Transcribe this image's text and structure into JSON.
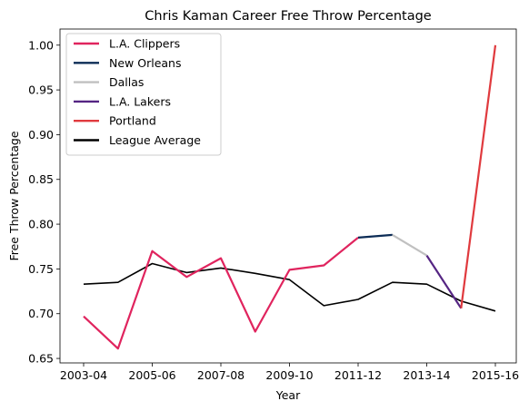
{
  "chart_data": {
    "type": "line",
    "title": "Chris Kaman Career Free Throw Percentage",
    "xlabel": "Year",
    "ylabel": "Free Throw Percentage",
    "seasons": [
      "2003-04",
      "2004-05",
      "2005-06",
      "2006-07",
      "2007-08",
      "2008-09",
      "2009-10",
      "2010-11",
      "2011-12",
      "2012-13",
      "2013-14",
      "2014-15",
      "2015-16"
    ],
    "x_tick_labels": [
      "2003-04",
      "2005-06",
      "2007-08",
      "2009-10",
      "2011-12",
      "2013-14",
      "2015-16"
    ],
    "ylim": [
      0.645,
      1.018
    ],
    "y_ticks": [
      0.65,
      0.7,
      0.75,
      0.8,
      0.85,
      0.9,
      0.95,
      1.0
    ],
    "y_tick_labels": [
      "0.65",
      "0.70",
      "0.75",
      "0.80",
      "0.85",
      "0.90",
      "0.95",
      "1.00"
    ],
    "legend_position": "top-left",
    "grid": false,
    "series": [
      {
        "name": "L.A. Clippers",
        "color": "#e0245e",
        "x": [
          "2003-04",
          "2004-05",
          "2005-06",
          "2006-07",
          "2007-08",
          "2008-09",
          "2009-10",
          "2010-11",
          "2011-12"
        ],
        "y": [
          0.697,
          0.661,
          0.77,
          0.741,
          0.762,
          0.68,
          0.749,
          0.754,
          0.785
        ]
      },
      {
        "name": "New Orleans",
        "color": "#0c2c56",
        "x": [
          "2011-12",
          "2012-13"
        ],
        "y": [
          0.785,
          0.788
        ]
      },
      {
        "name": "Dallas",
        "color": "#c0c0c0",
        "x": [
          "2012-13",
          "2013-14"
        ],
        "y": [
          0.788,
          0.765
        ]
      },
      {
        "name": "L.A. Lakers",
        "color": "#552583",
        "x": [
          "2013-14",
          "2014-15"
        ],
        "y": [
          0.765,
          0.706
        ]
      },
      {
        "name": "Portland",
        "color": "#e03a3e",
        "x": [
          "2014-15",
          "2015-16"
        ],
        "y": [
          0.706,
          1.0
        ]
      },
      {
        "name": "League Average",
        "color": "#000000",
        "x": [
          "2003-04",
          "2004-05",
          "2005-06",
          "2006-07",
          "2007-08",
          "2008-09",
          "2009-10",
          "2010-11",
          "2011-12",
          "2012-13",
          "2013-14",
          "2014-15",
          "2015-16"
        ],
        "y": [
          0.733,
          0.735,
          0.756,
          0.746,
          0.751,
          0.745,
          0.738,
          0.709,
          0.716,
          0.735,
          0.733,
          0.714,
          0.703
        ]
      }
    ]
  }
}
